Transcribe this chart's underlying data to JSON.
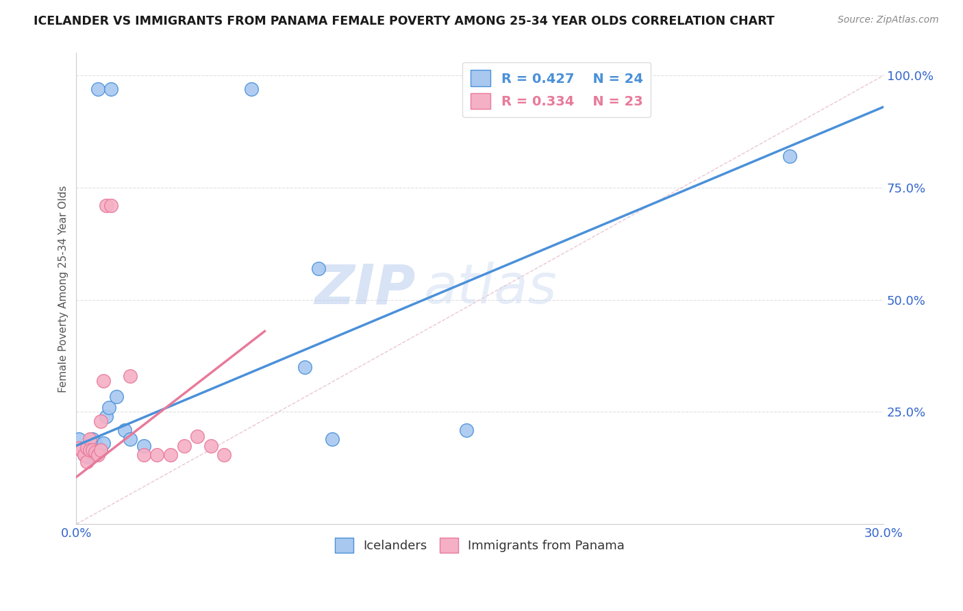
{
  "title": "ICELANDER VS IMMIGRANTS FROM PANAMA FEMALE POVERTY AMONG 25-34 YEAR OLDS CORRELATION CHART",
  "source": "Source: ZipAtlas.com",
  "ylabel": "Female Poverty Among 25-34 Year Olds",
  "xlim": [
    0.0,
    0.3
  ],
  "ylim": [
    0.0,
    1.05
  ],
  "xticks": [
    0.0,
    0.05,
    0.1,
    0.15,
    0.2,
    0.25,
    0.3
  ],
  "xticklabels": [
    "0.0%",
    "",
    "",
    "",
    "",
    "",
    "30.0%"
  ],
  "yticks_right": [
    0.0,
    0.25,
    0.5,
    0.75,
    1.0
  ],
  "yticklabels_right": [
    "",
    "25.0%",
    "50.0%",
    "75.0%",
    "100.0%"
  ],
  "blue_R": 0.427,
  "blue_N": 24,
  "pink_R": 0.334,
  "pink_N": 23,
  "blue_color": "#a8c8f0",
  "blue_line_color": "#4a90d9",
  "pink_color": "#f5b0c5",
  "pink_line_color": "#e87a9a",
  "grid_color": "#e0e0e0",
  "watermark_color": "#c8d8f0",
  "blue_scatter_x": [
    0.008,
    0.013,
    0.065,
    0.09,
    0.001,
    0.002,
    0.003,
    0.004,
    0.005,
    0.006,
    0.007,
    0.008,
    0.009,
    0.01,
    0.011,
    0.012,
    0.015,
    0.018,
    0.02,
    0.025,
    0.085,
    0.095,
    0.145,
    0.265
  ],
  "blue_scatter_y": [
    0.97,
    0.97,
    0.97,
    0.57,
    0.19,
    0.165,
    0.155,
    0.15,
    0.16,
    0.19,
    0.18,
    0.17,
    0.165,
    0.18,
    0.24,
    0.26,
    0.285,
    0.21,
    0.19,
    0.175,
    0.35,
    0.19,
    0.21,
    0.82
  ],
  "pink_scatter_x": [
    0.001,
    0.002,
    0.003,
    0.004,
    0.004,
    0.005,
    0.005,
    0.006,
    0.007,
    0.008,
    0.009,
    0.009,
    0.01,
    0.011,
    0.013,
    0.02,
    0.025,
    0.03,
    0.035,
    0.04,
    0.045,
    0.05,
    0.055
  ],
  "pink_scatter_y": [
    0.17,
    0.165,
    0.155,
    0.14,
    0.17,
    0.19,
    0.165,
    0.165,
    0.16,
    0.155,
    0.165,
    0.23,
    0.32,
    0.71,
    0.71,
    0.33,
    0.155,
    0.155,
    0.155,
    0.175,
    0.195,
    0.175,
    0.155
  ],
  "blue_line_x": [
    0.0,
    0.3
  ],
  "blue_line_y": [
    0.175,
    0.93
  ],
  "pink_line_x": [
    0.0,
    0.07
  ],
  "pink_line_y": [
    0.105,
    0.43
  ],
  "ref_line_x": [
    0.0,
    0.3
  ],
  "ref_line_y": [
    0.0,
    1.0
  ]
}
